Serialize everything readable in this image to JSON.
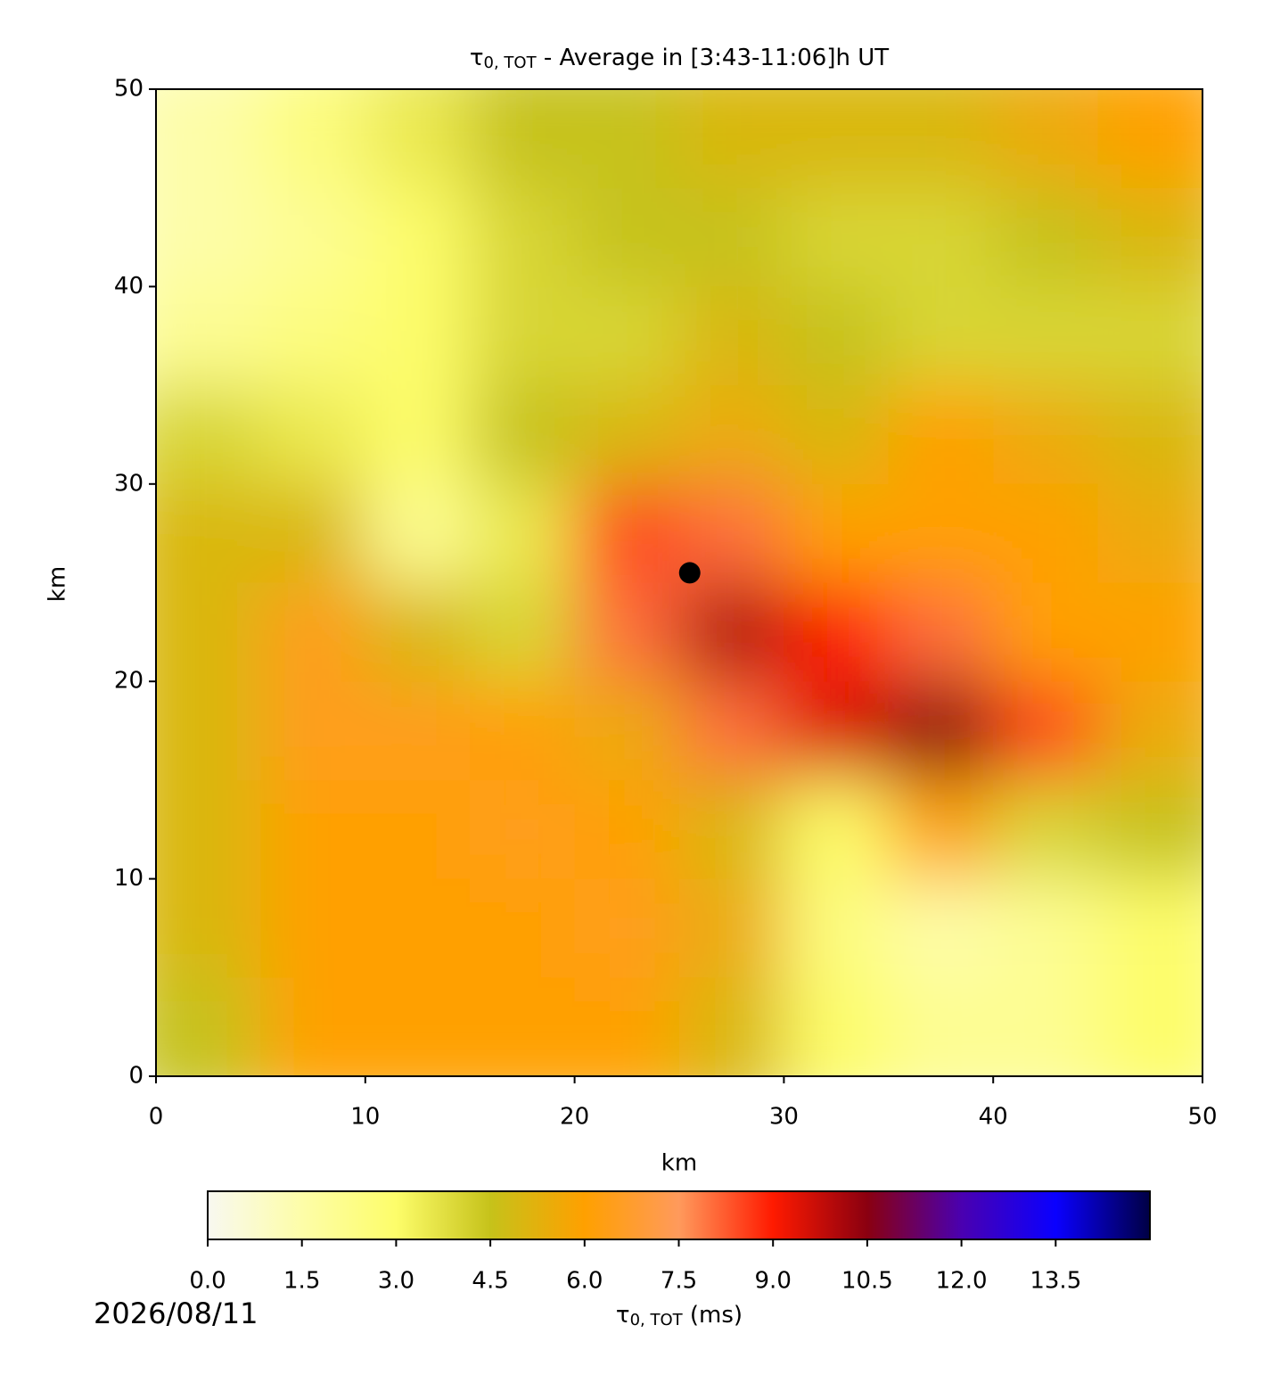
{
  "chart_data": {
    "type": "contourf",
    "title": {
      "symbol": "τ",
      "subscript": "0, TOT",
      "text": " - Average in [3:43-11:06]h UT"
    },
    "x_label": "km",
    "y_label": "km",
    "x": [
      2.5,
      7.5,
      12.5,
      17.5,
      22.5,
      27.5,
      32.5,
      37.5,
      42.5,
      47.5
    ],
    "y": [
      2.5,
      7.5,
      12.5,
      17.5,
      22.5,
      27.5,
      32.5,
      37.5,
      42.5,
      47.5
    ],
    "z": [
      [
        4.5,
        6,
        6,
        6,
        6,
        5,
        3,
        2,
        2,
        3
      ],
      [
        5,
        6,
        6,
        6,
        6.5,
        5.5,
        2.5,
        1.5,
        2,
        3
      ],
      [
        5,
        6,
        6,
        6.5,
        6,
        5,
        3,
        6,
        4,
        4.5
      ],
      [
        5,
        6.5,
        6.5,
        6,
        5.5,
        8,
        9.5,
        10.5,
        8.5,
        5.5
      ],
      [
        5,
        6.5,
        5,
        4,
        8,
        10,
        9,
        8,
        6,
        6
      ],
      [
        5,
        5,
        2,
        3.5,
        8.5,
        8,
        6,
        6,
        6,
        5.5
      ],
      [
        4,
        3.5,
        3,
        4.5,
        5,
        5.5,
        5,
        6,
        5.5,
        5
      ],
      [
        2,
        2.5,
        3,
        4,
        4,
        5,
        4.5,
        4,
        4,
        4
      ],
      [
        1.5,
        2,
        3,
        4,
        4.5,
        4.5,
        4,
        4,
        4.5,
        5
      ],
      [
        1.5,
        2.5,
        3.5,
        4.5,
        4.5,
        5,
        5,
        5,
        5.5,
        6
      ]
    ],
    "marker": {
      "x": 25.5,
      "y": 25.5,
      "color": "#000000"
    },
    "xlim": [
      0,
      50
    ],
    "ylim": [
      0,
      50
    ],
    "xticks": [
      0,
      10,
      20,
      30,
      40,
      50
    ],
    "yticks": [
      0,
      10,
      20,
      30,
      40,
      50
    ],
    "colormap": [
      "#f8f8f0",
      "#fdfda8",
      "#fdfd6a",
      "#c6c21a",
      "#ffa000",
      "#ff9a5c",
      "#ff1a00",
      "#8a0010",
      "#4a00b0",
      "#0a00ff",
      "#000044"
    ],
    "clim": [
      0,
      15
    ],
    "cticks": [
      {
        "value": 0,
        "label": "0.0"
      },
      {
        "value": 1.5,
        "label": "1.5"
      },
      {
        "value": 3,
        "label": "3.0"
      },
      {
        "value": 4.5,
        "label": "4.5"
      },
      {
        "value": 6,
        "label": "6.0"
      },
      {
        "value": 7.5,
        "label": "7.5"
      },
      {
        "value": 9,
        "label": "9.0"
      },
      {
        "value": 10.5,
        "label": "10.5"
      },
      {
        "value": 12,
        "label": "12.0"
      },
      {
        "value": 13.5,
        "label": "13.5"
      }
    ],
    "colorbar_label": {
      "symbol": "τ",
      "subscript": "0, TOT",
      "text": " (ms)"
    },
    "date": "2026/08/11"
  }
}
